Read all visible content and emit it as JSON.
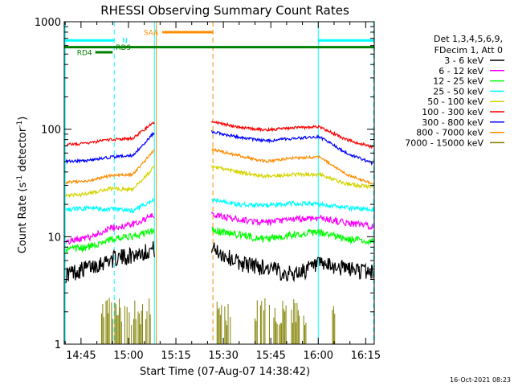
{
  "chart_data": {
    "type": "line",
    "title": "RHESSI Observing Summary Count Rates",
    "xlabel": "Start Time (07-Aug-07 14:38:42)",
    "ylabel_parts": [
      "Count Rate (s",
      "-1",
      " detector",
      "-1",
      ")"
    ],
    "footer": "16-Oct-2021 08:23",
    "x_ticks": [
      {
        "t": 45,
        "label": "14:45"
      },
      {
        "t": 60,
        "label": "15:00"
      },
      {
        "t": 75,
        "label": "15:15"
      },
      {
        "t": 90,
        "label": "15:30"
      },
      {
        "t": 105,
        "label": "15:45"
      },
      {
        "t": 120,
        "label": "16:00"
      },
      {
        "t": 135,
        "label": "16:15"
      }
    ],
    "x_range": [
      39.7,
      137.7
    ],
    "ylim": [
      1,
      1000
    ],
    "y_scale": "log",
    "y_ticks": [
      {
        "v": 1,
        "label": "1"
      },
      {
        "v": 10,
        "label": "10"
      },
      {
        "v": 100,
        "label": "100"
      },
      {
        "v": 1000,
        "label": "1000"
      }
    ],
    "legend_header": [
      "Det 1,3,4,5,6,9,",
      "FDecim 1, Att 0"
    ],
    "series": [
      {
        "name": "3 - 6 keV",
        "color": "#000000",
        "levels": [
          4.5,
          5.2,
          6.2,
          6.8,
          7.8,
          5.8,
          5.2,
          4.5,
          5.5,
          5.1,
          4.7
        ],
        "noise": 0.18
      },
      {
        "name": "6 - 12 keV",
        "color": "#ff00ff",
        "levels": [
          9.0,
          9.8,
          12,
          13,
          16,
          14.5,
          13.5,
          14.5,
          15,
          13.5,
          12.5
        ],
        "noise": 0.07
      },
      {
        "name": "12 - 25 keV",
        "color": "#00ff00",
        "levels": [
          7.5,
          8.0,
          9.5,
          10,
          11.5,
          10.5,
          9.5,
          10.5,
          11,
          9.5,
          9
        ],
        "noise": 0.08
      },
      {
        "name": "25 - 50 keV",
        "color": "#00ffff",
        "levels": [
          18,
          18.5,
          18,
          17.5,
          22,
          20,
          19.5,
          20.5,
          20,
          18.5,
          18
        ],
        "noise": 0.05
      },
      {
        "name": "50 - 100 keV",
        "color": "#d4d400",
        "levels": [
          24,
          25,
          28,
          27.5,
          45,
          40,
          36.5,
          38,
          38,
          31,
          29
        ],
        "noise": 0.04
      },
      {
        "name": "100 - 300 keV",
        "color": "#ff0000",
        "levels": [
          72,
          74,
          80,
          82,
          118,
          105,
          98,
          103,
          105,
          80,
          68
        ],
        "noise": 0.03
      },
      {
        "name": "300 - 800 keV",
        "color": "#0000ff",
        "levels": [
          50,
          51,
          55,
          57,
          95,
          84,
          78,
          82,
          85,
          60,
          48
        ],
        "noise": 0.03
      },
      {
        "name": "800 - 7000 keV",
        "color": "#ff8c00",
        "levels": [
          32,
          33,
          37,
          38,
          65,
          57,
          50,
          54,
          55,
          38,
          31
        ],
        "noise": 0.03
      },
      {
        "name": "7000 - 15000 keV",
        "color": "#808000",
        "levels": [],
        "noise": 0
      }
    ],
    "markers": [
      {
        "type": "vline",
        "t": 40.0,
        "style": "solid",
        "color": "#00ffff"
      },
      {
        "type": "vline",
        "t": 55.5,
        "style": "dashed",
        "color": "#00ffff"
      },
      {
        "type": "vline",
        "t": 68.2,
        "style": "solid",
        "color": "#00ffff"
      },
      {
        "type": "vline",
        "t": 68.8,
        "style": "solid",
        "color": "#ff8c00"
      },
      {
        "type": "vline",
        "t": 86.7,
        "style": "dashed",
        "color": "#ff8c00"
      },
      {
        "type": "vline",
        "t": 120.0,
        "style": "solid",
        "color": "#00ffff"
      },
      {
        "type": "vline",
        "t": 137.5,
        "style": "dashed",
        "color": "#00ffff"
      }
    ],
    "intervals": [
      {
        "label": "N",
        "color": "#00ffff",
        "segments": [
          [
            39.7,
            55.5
          ],
          [
            120.0,
            137.7
          ]
        ],
        "value": 670,
        "label_at": 57.5,
        "label_side": "right"
      },
      {
        "label": "SAA",
        "color": "#ff8c00",
        "segments": [
          [
            70.7,
            86.7
          ]
        ],
        "value": 800,
        "label_at": 70.0,
        "label_side": "left"
      },
      {
        "label": "RD9",
        "color": "#008000",
        "segments": [
          [
            39.7,
            137.7
          ]
        ],
        "value": 580,
        "label_at": 55.5,
        "label_side": "right"
      },
      {
        "label": "RD4",
        "color": "#008000",
        "segments": [
          [
            49.5,
            55.0
          ]
        ],
        "value": 520,
        "label_at": 49.0,
        "label_side": "left"
      }
    ]
  }
}
